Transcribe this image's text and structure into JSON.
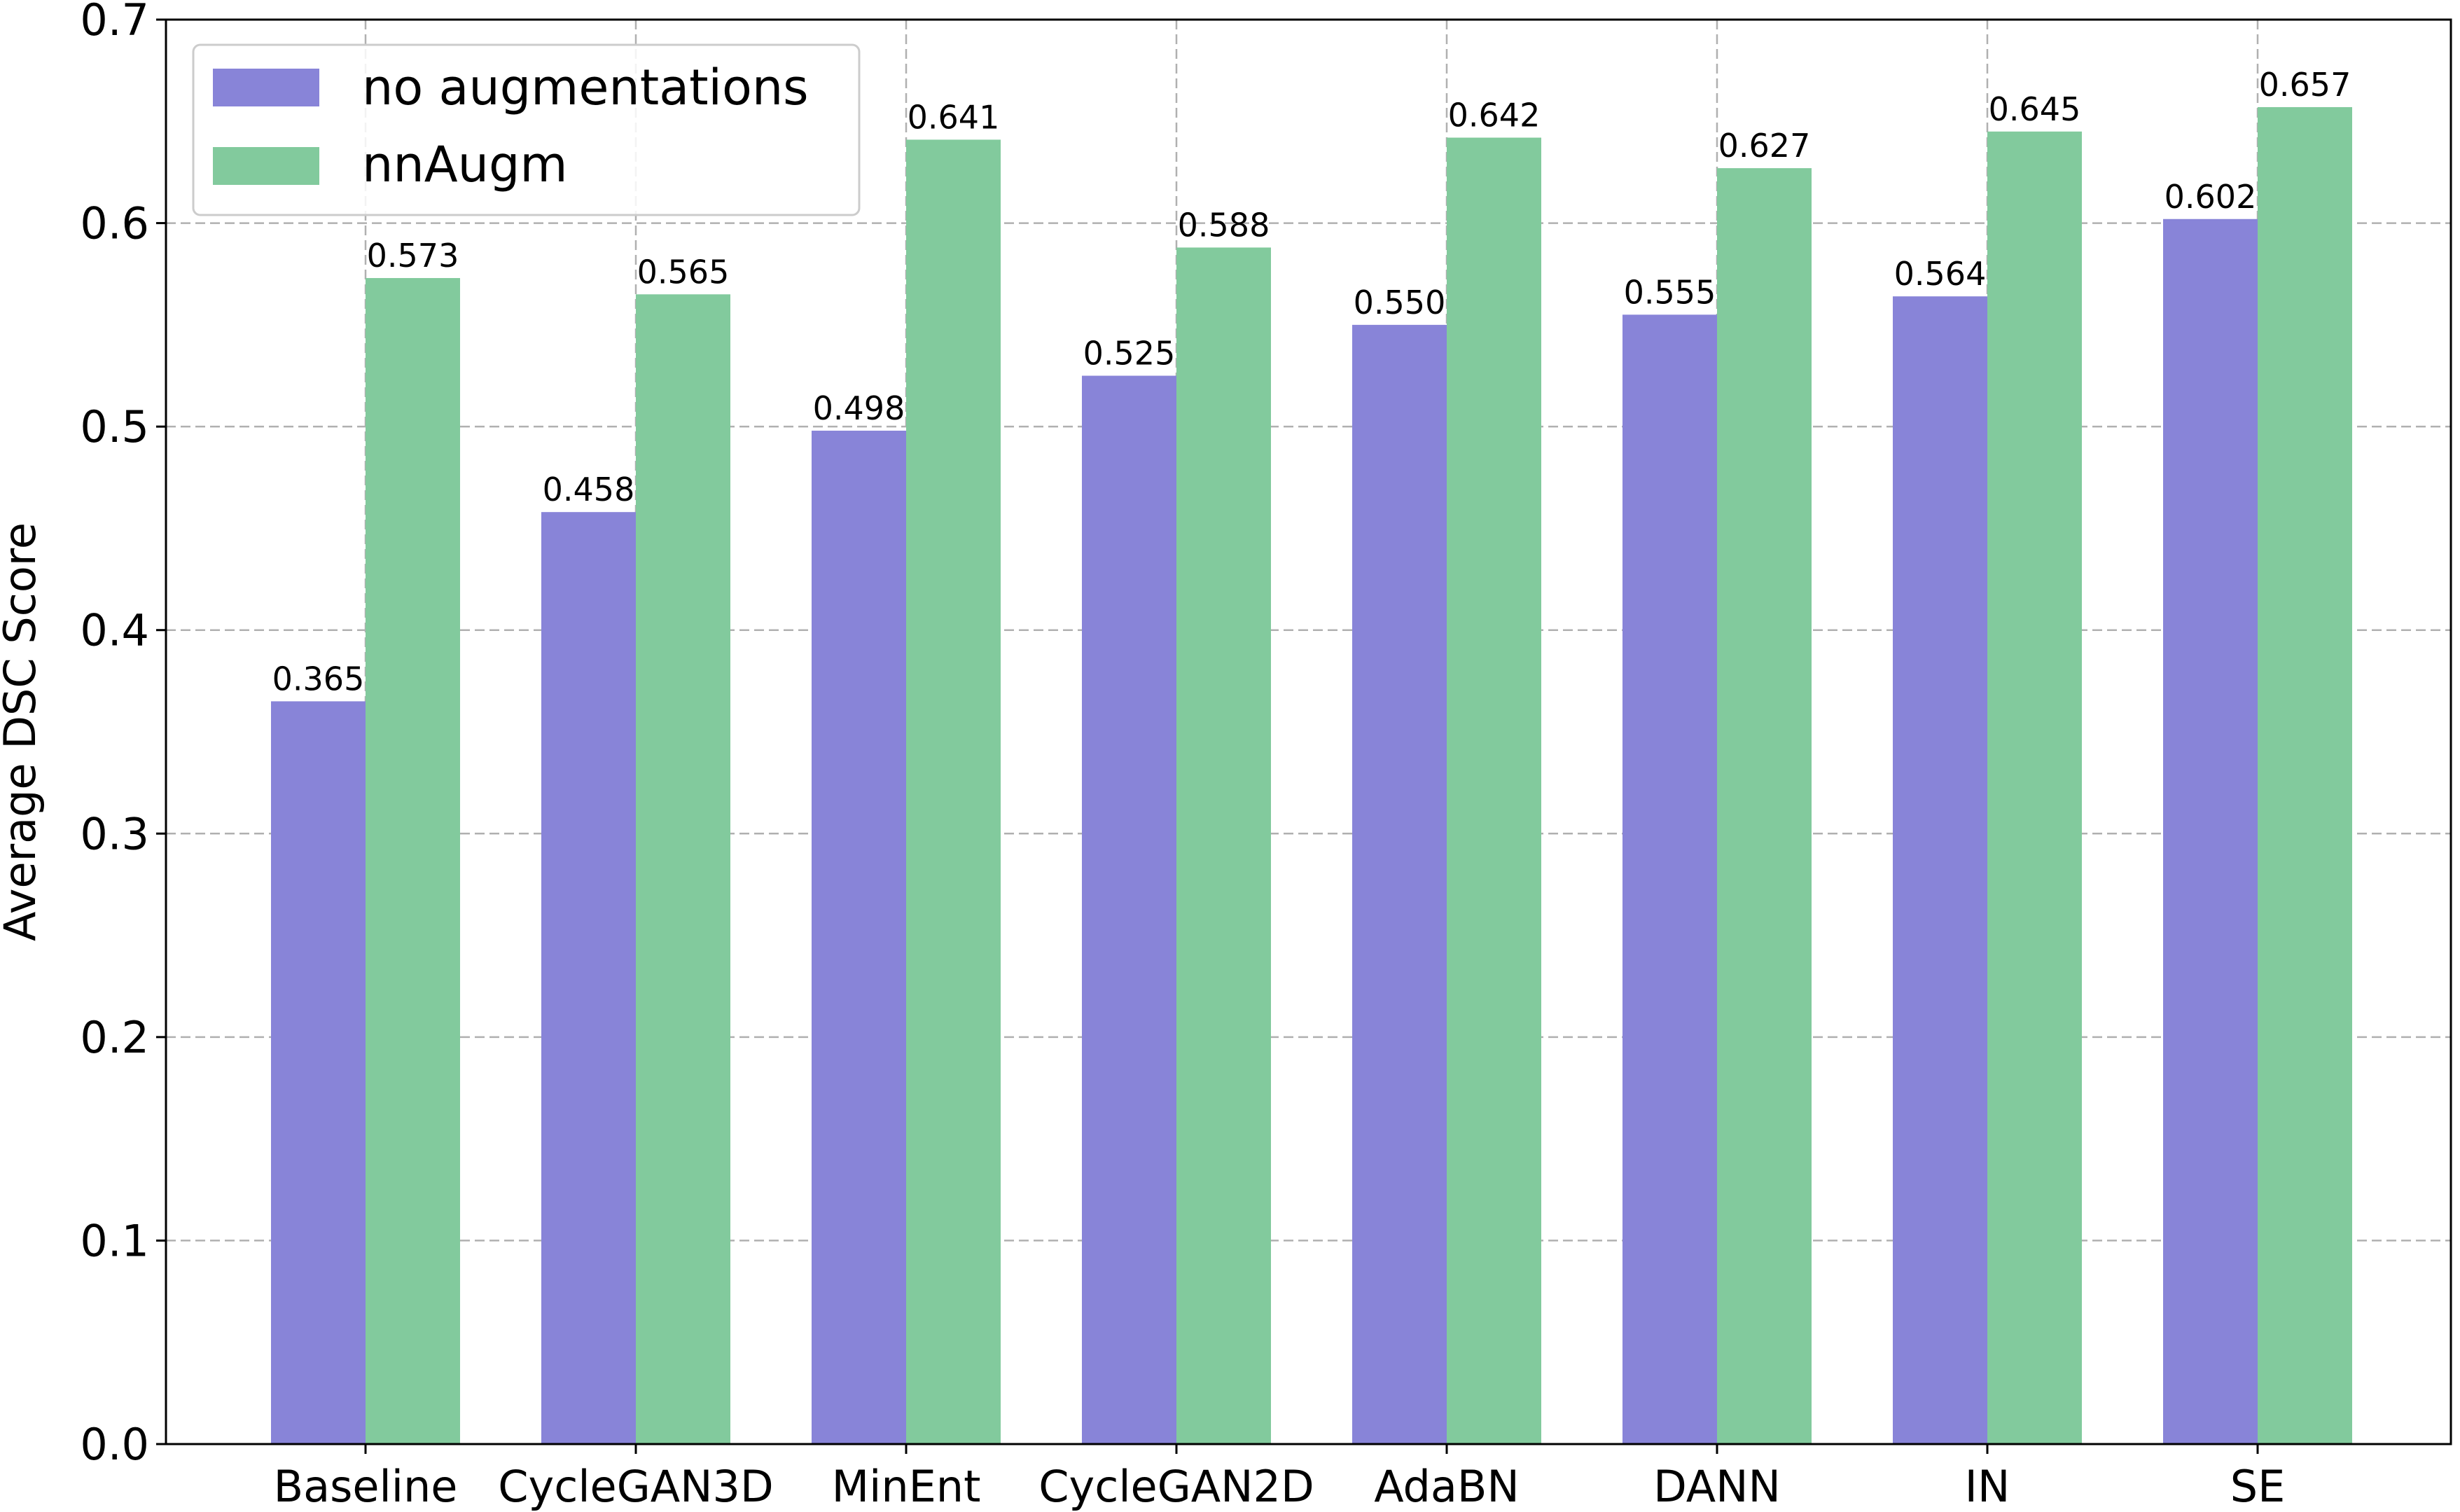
{
  "chart_data": {
    "type": "bar",
    "categories": [
      "Baseline",
      "CycleGAN3D",
      "MinEnt",
      "CycleGAN2D",
      "AdaBN",
      "DANN",
      "IN",
      "SE"
    ],
    "series": [
      {
        "name": "no augmentations",
        "color": "#8884d8",
        "values": [
          0.365,
          0.458,
          0.498,
          0.525,
          0.55,
          0.555,
          0.564,
          0.602
        ],
        "labels": [
          "0.365",
          "0.458",
          "0.498",
          "0.525",
          "0.550",
          "0.555",
          "0.564",
          "0.602"
        ]
      },
      {
        "name": "nnAugm",
        "color": "#82ca9d",
        "values": [
          0.573,
          0.565,
          0.641,
          0.588,
          0.642,
          0.627,
          0.645,
          0.657
        ],
        "labels": [
          "0.573",
          "0.565",
          "0.641",
          "0.588",
          "0.642",
          "0.627",
          "0.645",
          "0.657"
        ]
      }
    ],
    "xlabel": "",
    "ylabel": "Average DSC Score",
    "ylim": [
      0,
      0.7
    ],
    "yticks": [
      0.0,
      0.1,
      0.2,
      0.3,
      0.4,
      0.5,
      0.6,
      0.7
    ],
    "ytick_labels": [
      "0.0",
      "0.1",
      "0.2",
      "0.3",
      "0.4",
      "0.5",
      "0.6",
      "0.7"
    ],
    "grid": true,
    "legend_position": "top-left"
  }
}
